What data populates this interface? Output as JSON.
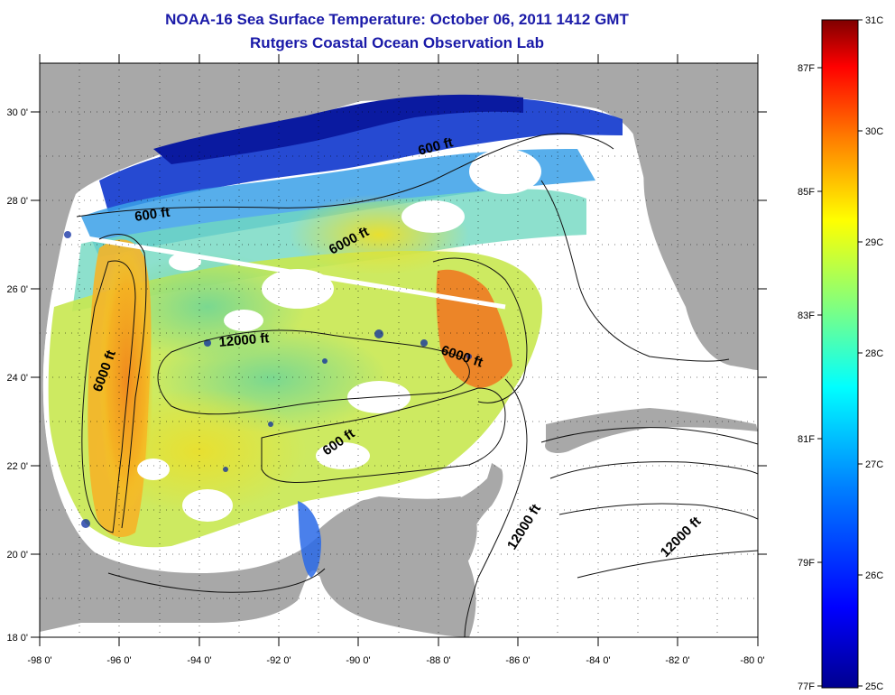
{
  "header": {
    "title": "NOAA-16 Sea Surface Temperature:  October 06, 2011 1412 GMT",
    "subtitle": "Rutgers Coastal Ocean Observation Lab"
  },
  "map": {
    "lon_range": [
      -98,
      -80
    ],
    "lat_range": [
      18,
      31
    ],
    "x_ticks": [
      "-98 0'",
      "-96 0'",
      "-94 0'",
      "-92 0'",
      "-90 0'",
      "-88 0'",
      "-86 0'",
      "-84 0'",
      "-82 0'",
      "-80 0'"
    ],
    "y_ticks": [
      "18 0'",
      "20 0'",
      "22 0'",
      "24 0'",
      "26 0'",
      "28 0'",
      "30 0'"
    ],
    "grid": "dotted",
    "land_color": "#a8a8a8",
    "cloud_color": "#ffffff",
    "contour_labels": [
      "600 ft",
      "600 ft",
      "6000 ft",
      "12000 ft",
      "6000 ft",
      "6000 ft",
      "600 ft",
      "12000 ft",
      "12000 ft"
    ]
  },
  "colorbar": {
    "celsius_labels": [
      "31C",
      "30C",
      "29C",
      "28C",
      "27C",
      "26C",
      "25C"
    ],
    "fahrenheit_labels": [
      "87F",
      "85F",
      "83F",
      "81F",
      "79F",
      "77F"
    ],
    "colors": [
      "#7f0000",
      "#ff0000",
      "#ff8000",
      "#ffff00",
      "#80ff80",
      "#00ffff",
      "#0080ff",
      "#0000ff",
      "#00008f"
    ]
  }
}
